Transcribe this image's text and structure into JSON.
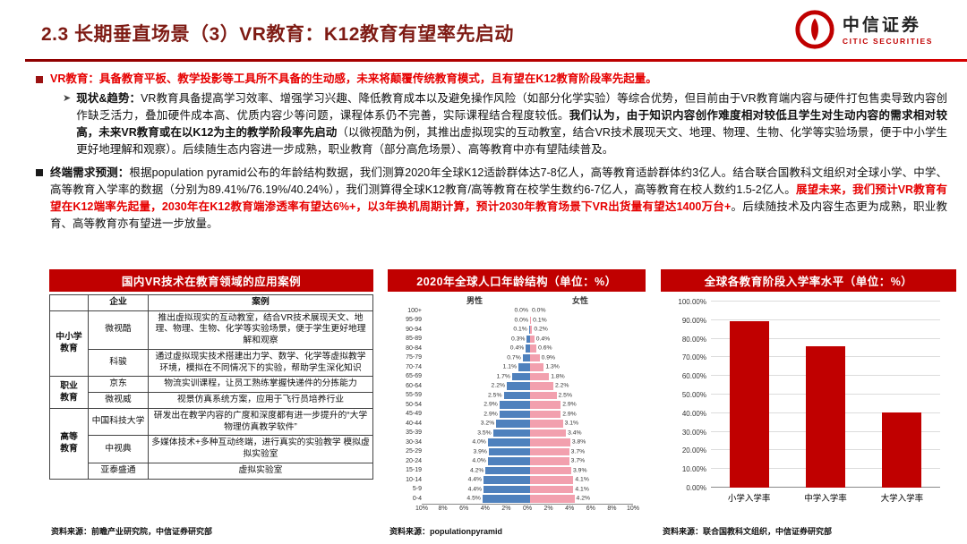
{
  "header": {
    "title": "2.3 长期垂直场景（3）VR教育：K12教育有望率先启动",
    "logo_cn": "中信证券",
    "logo_en": "CITIC SECURITIES"
  },
  "bullet1": {
    "text": "VR教育：具备教育平板、教学投影等工具所不具备的生动感，未来将颠覆传统教育模式，且有望在K12教育阶段率先起量。"
  },
  "bullet1_sub": {
    "label": "现状&趋势：",
    "seg1": "VR教育具备提高学习效率、增强学习兴趣、降低教育成本以及避免操作风险（如部分化学实验）等综合优势，但目前由于VR教育端内容与硬件打包售卖导致内容创作缺乏活力，叠加硬件成本高、优质内容少等问题，课程体系仍不完善，实际课程结合程度较低。",
    "seg2_bold": "我们认为，由于知识内容创作难度相对较低且学生对生动内容的需求相对较高，未来VR教育或在以K12为主的教学阶段率先启动",
    "seg3": "（以微视酷为例，其推出虚拟现实的互动教室，结合VR技术展现天文、地理、物理、生物、化学等实验场景，便于中小学生更好地理解和观察）。后续随生态内容进一步成熟，职业教育（部分高危场景）、高等教育中亦有望陆续普及。"
  },
  "bullet2": {
    "label": "终端需求预测：",
    "seg1": "根据population pyramid公布的年龄结构数据，我们测算2020年全球K12适龄群体达7-8亿人，高等教育适龄群体约3亿人。结合联合国教科文组织对全球小学、中学、高等教育入学率的数据（分别为89.41%/76.19%/40.24%），我们测算得全球K12教育/高等教育在校学生数约6-7亿人，高等教育在校人数约1.5-2亿人。",
    "seg2_red": "展望未来，我们预计VR教育有望在K12端率先起量，2030年在K12教育端渗透率有望达6%+，以3年换机周期计算，预计2030年教育场景下VR出货量有望达1400万台+",
    "seg3": "。后续随技术及内容生态更为成熟，职业教育、高等教育亦有望进一步放量。"
  },
  "table_panel": {
    "title": "国内VR技术在教育领域的应用案例",
    "col_company": "企业",
    "col_case": "案例",
    "groups": [
      {
        "label": "中小学\n教育",
        "rows": [
          {
            "company": "微视酷",
            "case": "推出虚拟现实的互动教室，结合VR技术展现天文、地理、物理、生物、化学等实验场景，便于学生更好地理解和观察"
          },
          {
            "company": "科骏",
            "case": "通过虚拟现实技术搭建出力学、数学、化学等虚拟教学环境，模拟在不同情况下的实验，帮助学生深化知识"
          }
        ]
      },
      {
        "label": "职业\n教育",
        "rows": [
          {
            "company": "京东",
            "case": "物流实训课程，让员工熟练掌握快递件的分拣能力"
          },
          {
            "company": "微视威",
            "case": "视景仿真系统方案，应用于飞行员培养行业"
          }
        ]
      },
      {
        "label": "高等\n教育",
        "rows": [
          {
            "company": "中国科技大学",
            "case": "研发出在教学内容的广度和深度都有进一步提升的“大学物理仿真教学软件”"
          },
          {
            "company": "中视典",
            "case": "多媒体技术+多种互动终端，进行真实的实验教学 模拟虚拟实验室"
          },
          {
            "company": "亚泰盛通",
            "case": "虚拟实验室"
          }
        ]
      }
    ],
    "source": "资料来源：前瞻产业研究院，中信证券研究部"
  },
  "chart_data": [
    {
      "type": "bar",
      "subtype": "population-pyramid",
      "title": "2020年全球人口年龄结构（单位：%）",
      "male_label": "男性",
      "female_label": "女性",
      "age_groups": [
        "100+",
        "95-99",
        "90-94",
        "85-89",
        "80-84",
        "75-79",
        "70-74",
        "65-69",
        "60-64",
        "55-59",
        "50-54",
        "45-49",
        "40-44",
        "35-39",
        "30-34",
        "25-29",
        "20-24",
        "15-19",
        "10-14",
        "5-9",
        "0-4"
      ],
      "series": [
        {
          "name": "男性",
          "values": [
            0.0,
            0.0,
            0.1,
            0.3,
            0.4,
            0.7,
            1.1,
            1.7,
            2.2,
            2.5,
            2.9,
            2.9,
            3.2,
            3.5,
            4.0,
            3.9,
            4.0,
            4.2,
            4.4,
            4.4,
            4.5
          ]
        },
        {
          "name": "女性",
          "values": [
            0.0,
            0.1,
            0.2,
            0.4,
            0.6,
            0.9,
            1.3,
            1.8,
            2.2,
            2.5,
            2.9,
            2.9,
            3.1,
            3.4,
            3.8,
            3.7,
            3.7,
            3.9,
            4.1,
            4.1,
            4.2
          ]
        }
      ],
      "x_ticks": [
        "10%",
        "8%",
        "6%",
        "4%",
        "2%",
        "0%",
        "2%",
        "4%",
        "6%",
        "8%",
        "10%"
      ],
      "xmax": 10,
      "male_color": "#4f81bd",
      "female_color": "#f2a0ae",
      "source": "资料来源：populationpyramid"
    },
    {
      "type": "bar",
      "title": "全球各教育阶段入学率水平（单位：%）",
      "categories": [
        "小学入学率",
        "中学入学率",
        "大学入学率"
      ],
      "values": [
        89.41,
        76.19,
        40.24
      ],
      "y_ticks": [
        "0.00%",
        "10.00%",
        "20.00%",
        "30.00%",
        "40.00%",
        "50.00%",
        "60.00%",
        "70.00%",
        "80.00%",
        "90.00%",
        "100.00%"
      ],
      "ylim": [
        0,
        100
      ],
      "grid": true,
      "bar_color": "#c00000",
      "source": "资料来源：联合国教科文组织，中信证券研究部"
    }
  ]
}
